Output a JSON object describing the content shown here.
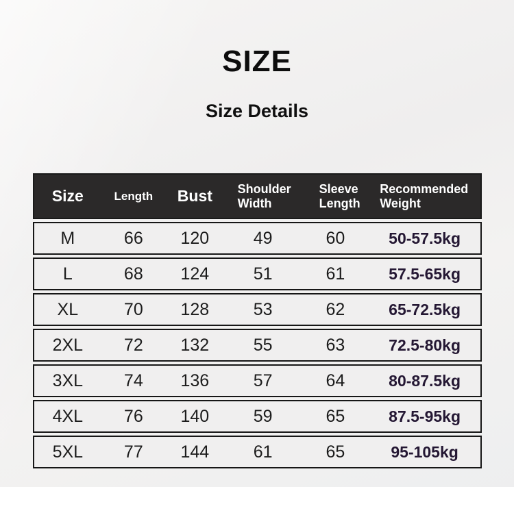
{
  "page": {
    "title": "SIZE",
    "subtitle": "Size Details"
  },
  "colors": {
    "header_background": "#2b2929",
    "header_text": "#ffffff",
    "row_background": "#f0efef",
    "row_border": "#161616",
    "data_text": "#1c1c1c",
    "weight_text": "#241733",
    "page_background": "#f1f0ef",
    "bottom_strip": "#ffffff"
  },
  "table": {
    "headers": [
      {
        "id": "size",
        "label": "Size"
      },
      {
        "id": "length",
        "label": "Length"
      },
      {
        "id": "bust",
        "label": "Bust"
      },
      {
        "id": "shoulder_width",
        "label": "Shoulder Width"
      },
      {
        "id": "sleeve_length",
        "label": "Sleeve Length"
      },
      {
        "id": "recommended_weight",
        "label": "Recommended Weight"
      }
    ],
    "rows": [
      {
        "size": "M",
        "length": "66",
        "bust": "120",
        "shoulder_width": "49",
        "sleeve_length": "60",
        "recommended_weight": "50-57.5kg"
      },
      {
        "size": "L",
        "length": "68",
        "bust": "124",
        "shoulder_width": "51",
        "sleeve_length": "61",
        "recommended_weight": "57.5-65kg"
      },
      {
        "size": "XL",
        "length": "70",
        "bust": "128",
        "shoulder_width": "53",
        "sleeve_length": "62",
        "recommended_weight": "65-72.5kg"
      },
      {
        "size": "2XL",
        "length": "72",
        "bust": "132",
        "shoulder_width": "55",
        "sleeve_length": "63",
        "recommended_weight": "72.5-80kg"
      },
      {
        "size": "3XL",
        "length": "74",
        "bust": "136",
        "shoulder_width": "57",
        "sleeve_length": "64",
        "recommended_weight": "80-87.5kg"
      },
      {
        "size": "4XL",
        "length": "76",
        "bust": "140",
        "shoulder_width": "59",
        "sleeve_length": "65",
        "recommended_weight": "87.5-95kg"
      },
      {
        "size": "5XL",
        "length": "77",
        "bust": "144",
        "shoulder_width": "61",
        "sleeve_length": "65",
        "recommended_weight": "95-105kg"
      }
    ]
  }
}
